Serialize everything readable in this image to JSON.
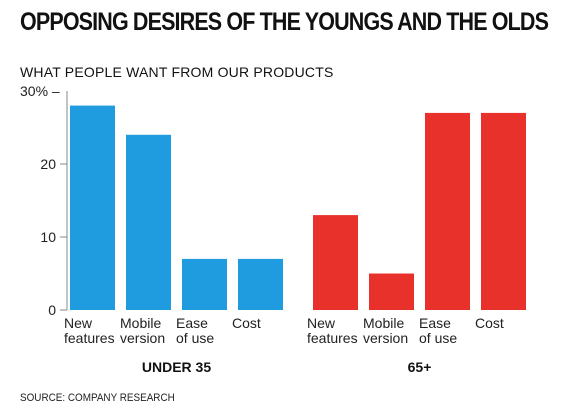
{
  "title": "OPPOSING DESIRES OF THE YOUNGS AND THE OLDS",
  "subtitle": "WHAT PEOPLE WANT FROM OUR PRODUCTS",
  "source": "SOURCE: COMPANY RESEARCH",
  "chart_data": {
    "type": "bar",
    "ylim": [
      0,
      30
    ],
    "yticks": [
      {
        "value": 0,
        "label": "0"
      },
      {
        "value": 10,
        "label": "10"
      },
      {
        "value": 20,
        "label": "20"
      },
      {
        "value": 30,
        "label": "30% –"
      }
    ],
    "grid": false,
    "groups": [
      {
        "name": "UNDER 35",
        "color": "#1f9be0",
        "categories": [
          [
            "New",
            "features"
          ],
          [
            "Mobile",
            "version"
          ],
          [
            "Ease",
            "of use"
          ],
          [
            "Cost"
          ]
        ],
        "values": [
          28,
          24,
          7,
          7
        ]
      },
      {
        "name": "65+",
        "color": "#e8312b",
        "categories": [
          [
            "New",
            "features"
          ],
          [
            "Mobile",
            "version"
          ],
          [
            "Ease",
            "of use"
          ],
          [
            "Cost"
          ]
        ],
        "values": [
          13,
          5,
          27,
          27
        ]
      }
    ]
  }
}
